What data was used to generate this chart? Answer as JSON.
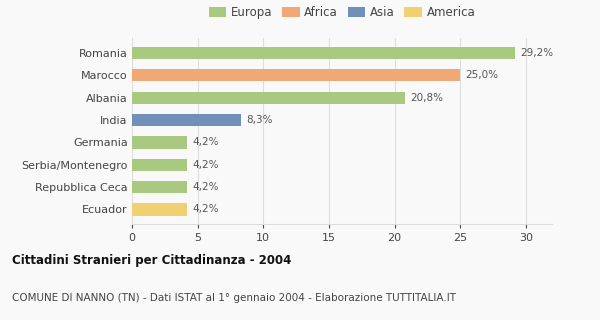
{
  "categories": [
    "Romania",
    "Marocco",
    "Albania",
    "India",
    "Germania",
    "Serbia/Montenegro",
    "Repubblica Ceca",
    "Ecuador"
  ],
  "values": [
    29.2,
    25.0,
    20.8,
    8.3,
    4.2,
    4.2,
    4.2,
    4.2
  ],
  "labels": [
    "29,2%",
    "25,0%",
    "20,8%",
    "8,3%",
    "4,2%",
    "4,2%",
    "4,2%",
    "4,2%"
  ],
  "colors": [
    "#a8c97f",
    "#f0a875",
    "#a8c97f",
    "#7090b8",
    "#a8c97f",
    "#a8c97f",
    "#a8c97f",
    "#f0d070"
  ],
  "legend_labels": [
    "Europa",
    "Africa",
    "Asia",
    "America"
  ],
  "legend_colors": [
    "#a8c97f",
    "#f0a875",
    "#7090b8",
    "#f0d070"
  ],
  "title": "Cittadini Stranieri per Cittadinanza - 2004",
  "subtitle": "COMUNE DI NANNO (TN) - Dati ISTAT al 1° gennaio 2004 - Elaborazione TUTTITALIA.IT",
  "xlim": [
    0,
    32
  ],
  "xticks": [
    0,
    5,
    10,
    15,
    20,
    25,
    30
  ],
  "background_color": "#f9f9f9",
  "grid_color": "#dddddd",
  "bar_height": 0.55
}
